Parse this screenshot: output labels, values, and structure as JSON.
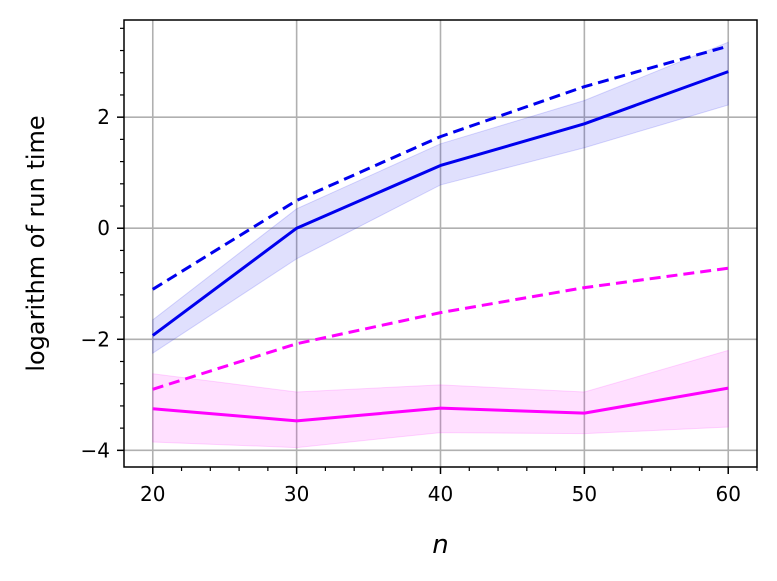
{
  "chart_data": {
    "type": "line",
    "xlabel": "n",
    "ylabel": "logarithm of run time",
    "x": [
      20,
      30,
      40,
      50,
      60
    ],
    "xlim": [
      18,
      62
    ],
    "ylim": [
      -4.3,
      3.75
    ],
    "xticks": [
      20,
      30,
      40,
      50,
      60
    ],
    "yticks": [
      -4,
      -2,
      0,
      2
    ],
    "xtick_labels": [
      "20",
      "30",
      "40",
      "50",
      "60"
    ],
    "ytick_labels": [
      "−4",
      "−2",
      "0",
      "2"
    ],
    "grid": true,
    "legend": "none",
    "series": [
      {
        "color": "#0000ee",
        "style": "solid",
        "values": [
          -1.93,
          0.0,
          1.13,
          1.88,
          2.82
        ],
        "band_lower": [
          -2.25,
          -0.55,
          0.78,
          1.45,
          2.22
        ],
        "band_upper": [
          -1.65,
          0.35,
          1.52,
          2.3,
          3.35
        ],
        "band_color": "#0000ee"
      },
      {
        "color": "#0000ee",
        "style": "dashed",
        "values": [
          -1.1,
          0.5,
          1.65,
          2.55,
          3.28
        ]
      },
      {
        "color": "#ff00ff",
        "style": "solid",
        "values": [
          -3.25,
          -3.47,
          -3.24,
          -3.33,
          -2.88
        ],
        "band_lower": [
          -3.85,
          -3.95,
          -3.68,
          -3.7,
          -3.58
        ],
        "band_upper": [
          -2.62,
          -2.95,
          -2.82,
          -2.95,
          -2.2
        ],
        "band_color": "#ff00ff"
      },
      {
        "color": "#ff00ff",
        "style": "dashed",
        "values": [
          -2.9,
          -2.08,
          -1.52,
          -1.07,
          -0.72
        ]
      }
    ]
  }
}
